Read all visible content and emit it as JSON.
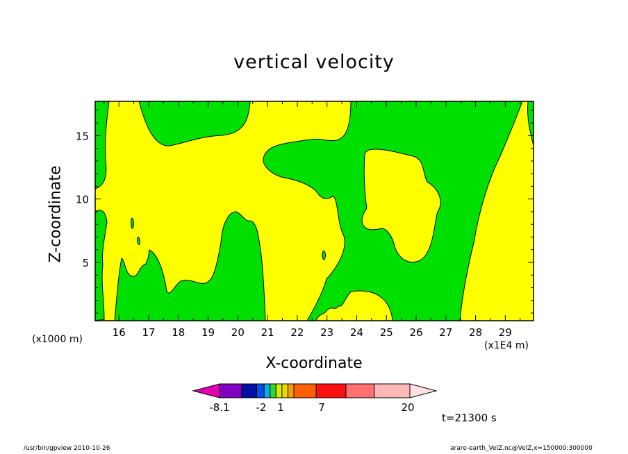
{
  "chart_data": {
    "type": "contour",
    "title": "vertical velocity",
    "xlabel": "X-coordinate",
    "ylabel": "Z-coordinate",
    "x_unit_label": "(x1E4 m)",
    "y_unit_label": "(x1000 m)",
    "xlim": [
      15.2,
      29.95
    ],
    "ylim": [
      0.4,
      17.7
    ],
    "x_ticks": [
      "16",
      "17",
      "18",
      "19",
      "20",
      "21",
      "22",
      "23",
      "24",
      "25",
      "26",
      "27",
      "28",
      "29"
    ],
    "y_ticks": [
      "5",
      "10",
      "15"
    ],
    "time_label": "t=21300 s",
    "colorbar": {
      "tick_labels": [
        "-8.1",
        "-2",
        "1",
        "7",
        "20"
      ],
      "colors": [
        "#e000b0",
        "#8000c0",
        "#0010a0",
        "#0050e8",
        "#00b0f0",
        "#30d830",
        "#d8f000",
        "#f0d800",
        "#f0a000",
        "#ff6000",
        "#ff1010",
        "#ff7070",
        "#ffb8b8",
        "#ffe0e0"
      ]
    },
    "regions": [
      {
        "level": "positive",
        "color": "#ffff00"
      },
      {
        "level": "negative",
        "color": "#00e000"
      }
    ]
  },
  "footer": {
    "left": "/usr/bin/gpview   2010-10-26",
    "right": "arare-earth_VelZ.nc@VelZ,x=150000:300000"
  }
}
